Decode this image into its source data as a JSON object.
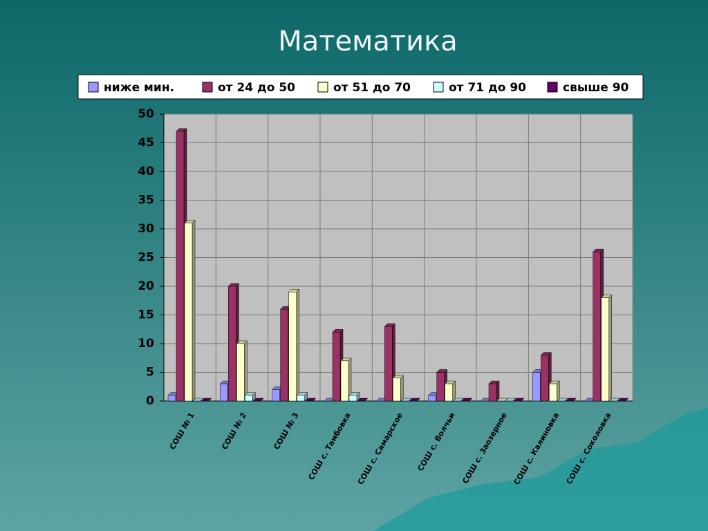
{
  "chart_data": {
    "type": "bar3d",
    "title": "Математика",
    "categories": [
      "СОШ № 1",
      "СОШ № 2",
      "СОШ № 3",
      "СОШ с. Тамбовка",
      "СОШ с. Самарское",
      "СОШ с. Волчьи",
      "СОШ с. Заозерное",
      "СОШ с. Калиновка",
      "СОШ с. Соколовка"
    ],
    "series": [
      {
        "name": "ниже мин.",
        "color": "#9999ff",
        "values": [
          1,
          3,
          2,
          0,
          0,
          1,
          0,
          5,
          0
        ]
      },
      {
        "name": "от 24 до 50",
        "color": "#993366",
        "values": [
          47,
          20,
          16,
          12,
          13,
          5,
          3,
          8,
          26
        ]
      },
      {
        "name": "от 51 до 70",
        "color": "#ffffcc",
        "values": [
          31,
          10,
          19,
          7,
          4,
          3,
          0,
          3,
          18
        ]
      },
      {
        "name": "от 71 до 90",
        "color": "#ccffff",
        "values": [
          0,
          1,
          1,
          1,
          0,
          0,
          0,
          0,
          0
        ]
      },
      {
        "name": "свыше 90",
        "color": "#660066",
        "values": [
          0,
          0,
          0,
          0,
          0,
          0,
          0,
          0,
          0
        ]
      }
    ],
    "ylim": [
      0,
      50
    ],
    "yticks": [
      0,
      5,
      10,
      15,
      20,
      25,
      30,
      35,
      40,
      45,
      50
    ],
    "grid": true
  }
}
